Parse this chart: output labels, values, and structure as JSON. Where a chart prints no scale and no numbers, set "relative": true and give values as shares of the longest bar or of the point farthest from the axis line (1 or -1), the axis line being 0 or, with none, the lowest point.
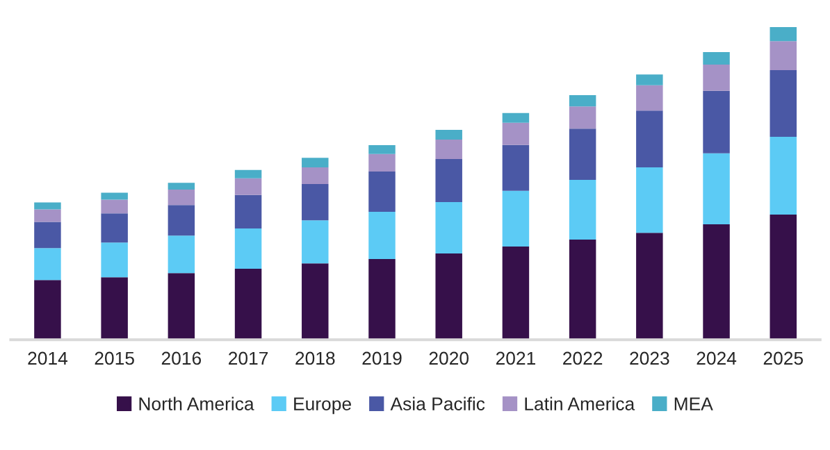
{
  "chart_data": {
    "type": "bar",
    "stacked": true,
    "relative": true,
    "legend": "bottom",
    "grid": false,
    "categories": [
      "2014",
      "2015",
      "2016",
      "2017",
      "2018",
      "2019",
      "2020",
      "2021",
      "2022",
      "2023",
      "2024",
      "2025"
    ],
    "series": [
      {
        "name": "North America",
        "color": "#36104a",
        "values": [
          0.191,
          0.2,
          0.213,
          0.227,
          0.244,
          0.258,
          0.276,
          0.298,
          0.32,
          0.342,
          0.369,
          0.4
        ]
      },
      {
        "name": "Europe",
        "color": "#5ccbf5",
        "values": [
          0.102,
          0.111,
          0.12,
          0.129,
          0.138,
          0.151,
          0.164,
          0.178,
          0.191,
          0.209,
          0.227,
          0.249
        ]
      },
      {
        "name": "Asia Pacific",
        "color": "#4a58a5",
        "values": [
          0.084,
          0.093,
          0.098,
          0.107,
          0.116,
          0.129,
          0.138,
          0.147,
          0.164,
          0.182,
          0.2,
          0.213
        ]
      },
      {
        "name": "Latin America",
        "color": "#a592c6",
        "values": [
          0.04,
          0.044,
          0.049,
          0.053,
          0.053,
          0.056,
          0.062,
          0.071,
          0.071,
          0.081,
          0.084,
          0.093
        ]
      },
      {
        "name": "MEA",
        "color": "#4aaec8",
        "values": [
          0.022,
          0.022,
          0.022,
          0.027,
          0.031,
          0.028,
          0.031,
          0.031,
          0.036,
          0.034,
          0.04,
          0.045
        ]
      }
    ]
  }
}
